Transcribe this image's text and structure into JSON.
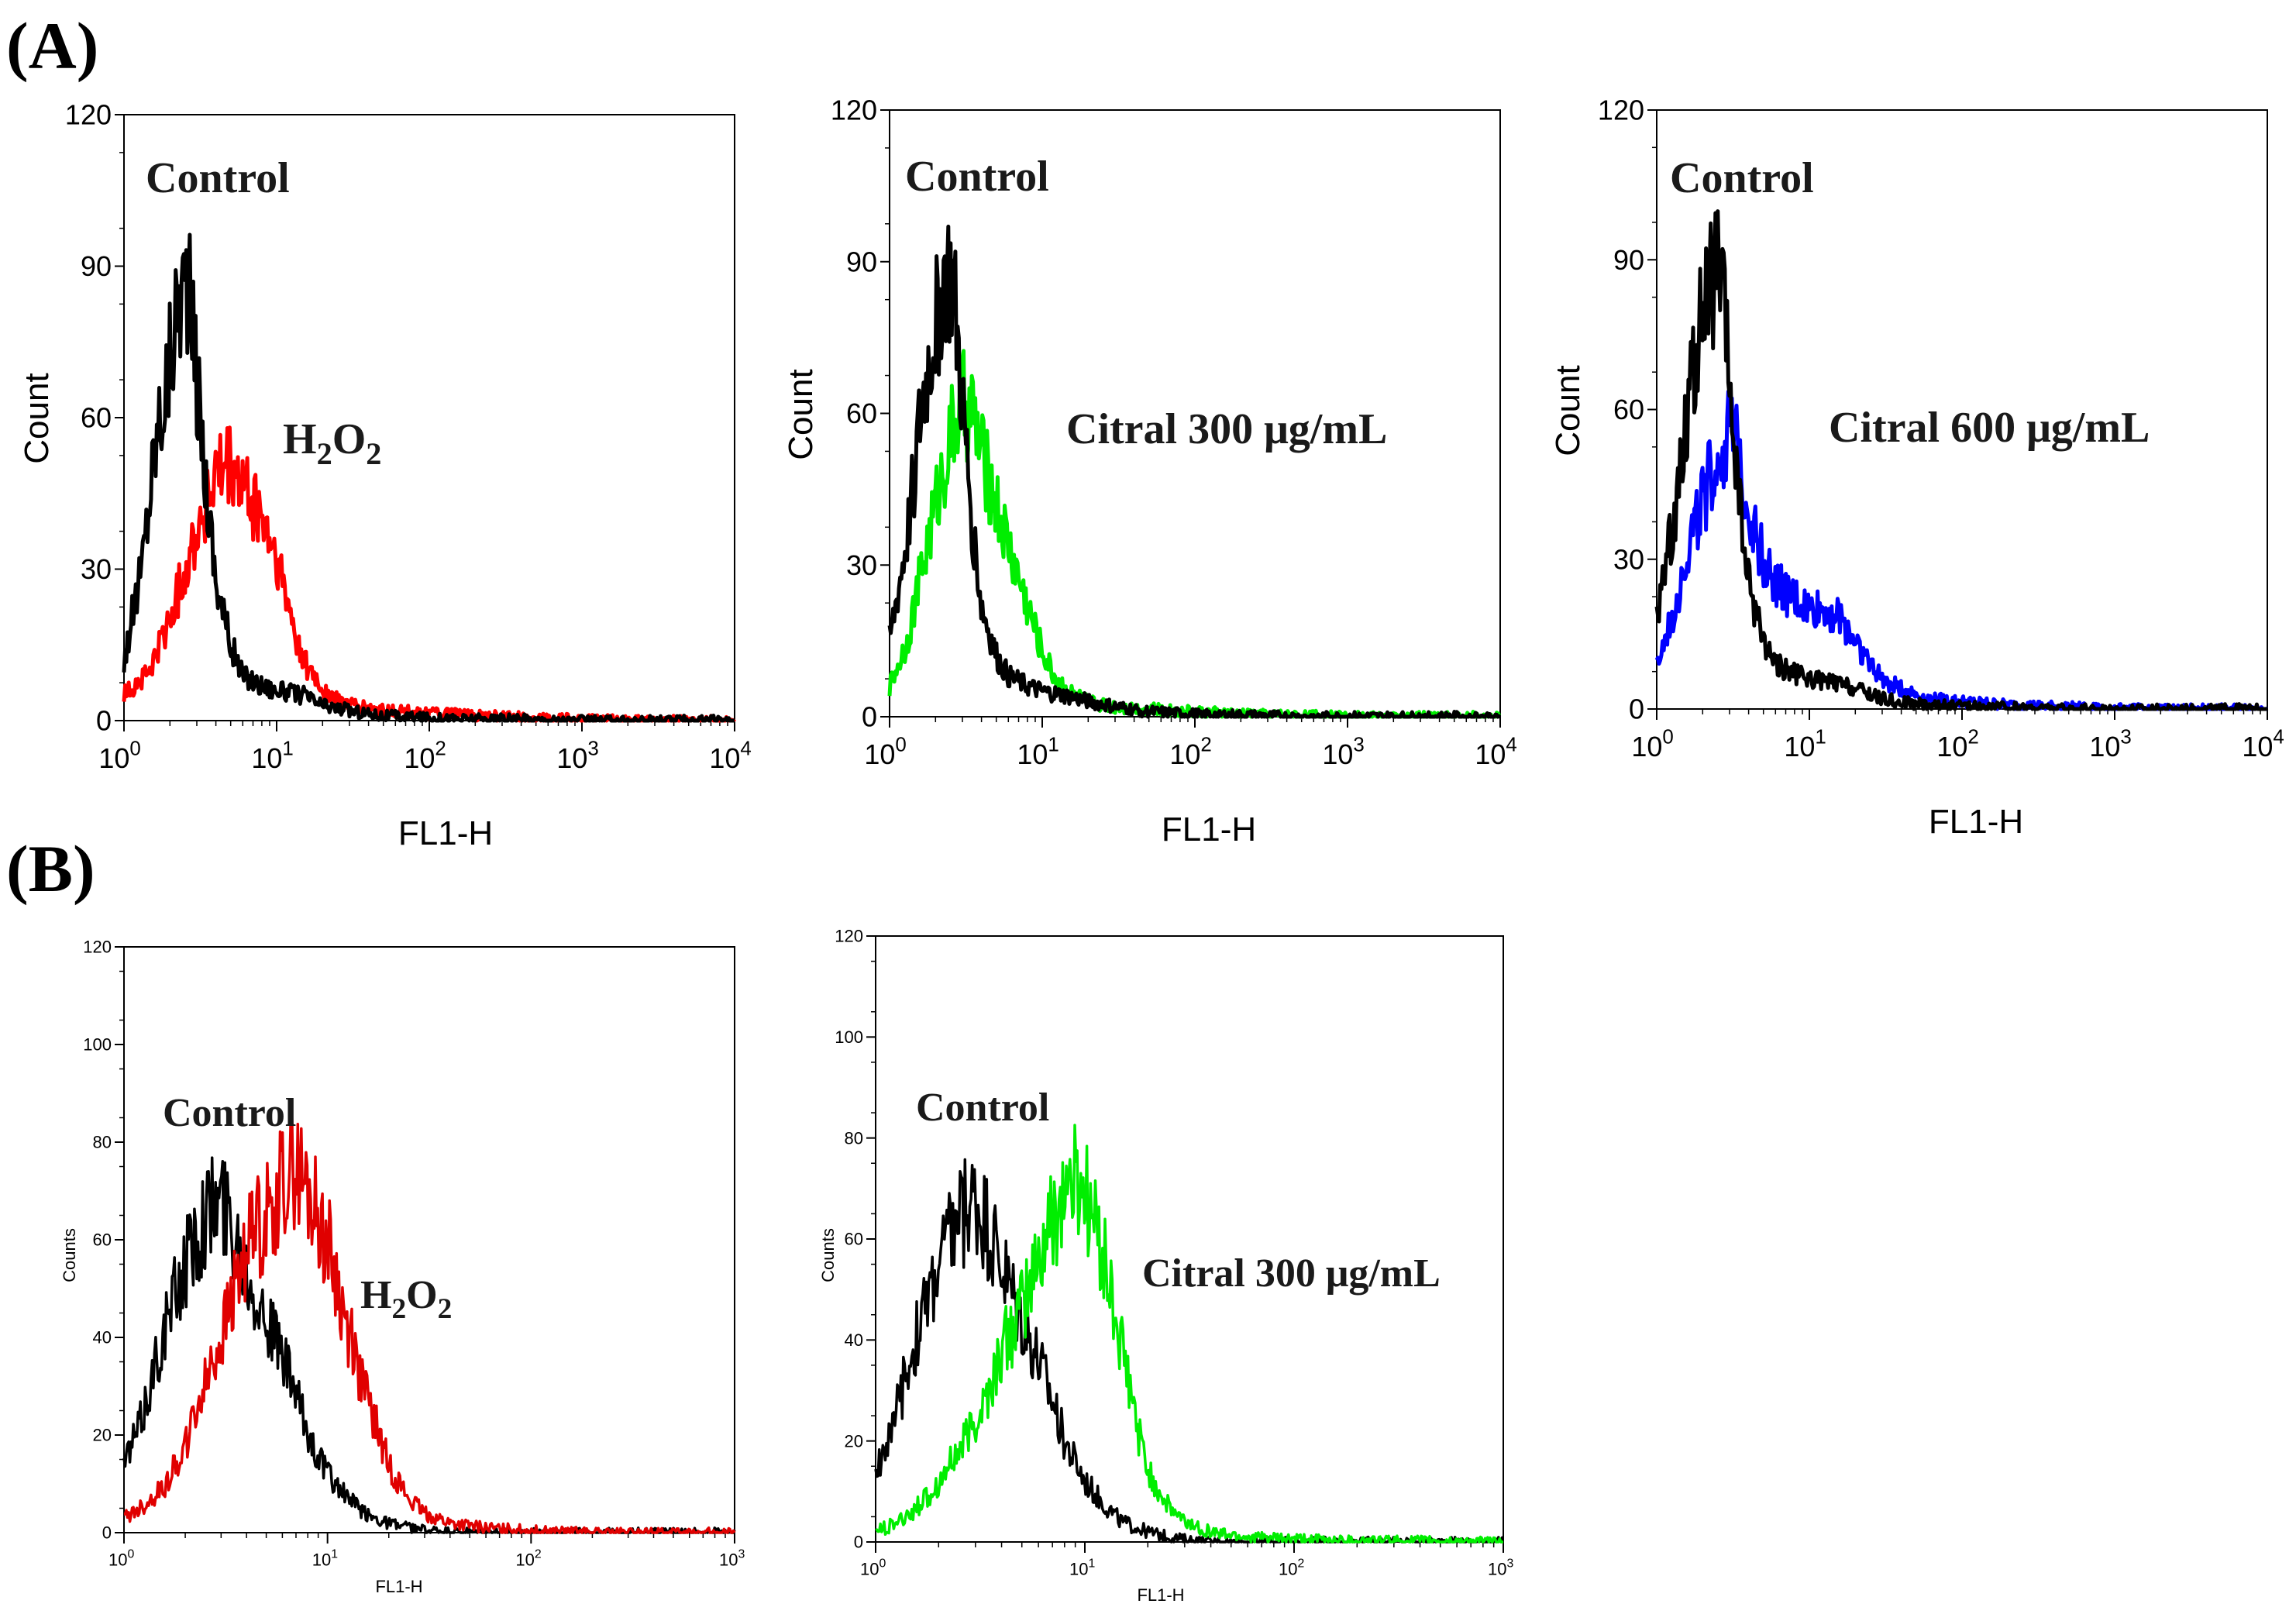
{
  "figure": {
    "panel_labels": [
      "(A)",
      "(B)"
    ]
  },
  "colors": {
    "control": "#000000",
    "h2o2": "#ff0000",
    "h2o2_b": "#e00000",
    "citral300": "#00ee00",
    "citral600": "#0000ff"
  },
  "chart_data": [
    {
      "panel": "A",
      "type": "line",
      "title": "",
      "xlabel": "FL1-H",
      "ylabel": "Count",
      "xscale": "log",
      "xlim": [
        1,
        10000
      ],
      "ylim": [
        0,
        120
      ],
      "yticks": [
        "0",
        "30",
        "60",
        "90",
        "120"
      ],
      "xticks": [
        {
          "base": "10",
          "exp": "0"
        },
        {
          "base": "10",
          "exp": "1"
        },
        {
          "base": "10",
          "exp": "2"
        },
        {
          "base": "10",
          "exp": "3"
        },
        {
          "base": "10",
          "exp": "4"
        }
      ],
      "annotations": [
        {
          "text": "Control",
          "target": "control"
        },
        {
          "text": "H",
          "sub": "2",
          "text2": "O",
          "sub2": "2",
          "target": "treatment"
        }
      ],
      "series": [
        {
          "name": "Control",
          "color": "#000000",
          "x": [
            1,
            1.3,
            1.6,
            2.0,
            2.3,
            2.6,
            3.0,
            3.5,
            4.0,
            5.0,
            6.0,
            8.0,
            10,
            15,
            20,
            30,
            50,
            100,
            200,
            500,
            1000,
            2000,
            10000
          ],
          "values": [
            12,
            30,
            55,
            72,
            85,
            88,
            68,
            45,
            28,
            15,
            9,
            7,
            6,
            5,
            3,
            2,
            1,
            0.5,
            0.3,
            0.2,
            0,
            0,
            0
          ]
        },
        {
          "name": "H2O2",
          "color": "#ff0000",
          "x": [
            1,
            1.5,
            2.0,
            2.5,
            3.0,
            4.0,
            5.0,
            6.0,
            8.0,
            10,
            12,
            15,
            20,
            25,
            30,
            50,
            100,
            200,
            500,
            1000,
            2000,
            10000
          ],
          "values": [
            5,
            10,
            20,
            30,
            38,
            48,
            50,
            46,
            40,
            32,
            22,
            12,
            6,
            4,
            3,
            2,
            1.5,
            1,
            0.5,
            0.3,
            0,
            0
          ]
        }
      ]
    },
    {
      "panel": "A",
      "type": "line",
      "title": "",
      "xlabel": "FL1-H",
      "ylabel": "Count",
      "xscale": "log",
      "xlim": [
        1,
        10000
      ],
      "ylim": [
        0,
        120
      ],
      "yticks": [
        "0",
        "30",
        "60",
        "90",
        "120"
      ],
      "xticks": [
        {
          "base": "10",
          "exp": "0"
        },
        {
          "base": "10",
          "exp": "1"
        },
        {
          "base": "10",
          "exp": "2"
        },
        {
          "base": "10",
          "exp": "3"
        },
        {
          "base": "10",
          "exp": "4"
        }
      ],
      "annotations": [
        {
          "text": "Control",
          "target": "control"
        },
        {
          "text": "Citral 300 μg/mL",
          "target": "treatment"
        }
      ],
      "series": [
        {
          "name": "Control",
          "color": "#000000",
          "x": [
            1,
            1.3,
            1.6,
            2.0,
            2.3,
            2.6,
            3.0,
            3.5,
            4.0,
            5.0,
            6.0,
            8.0,
            10,
            15,
            20,
            30,
            50,
            100,
            200,
            500,
            1000,
            10000
          ],
          "values": [
            15,
            35,
            60,
            78,
            88,
            86,
            62,
            38,
            22,
            12,
            8,
            6,
            5,
            4,
            3,
            2,
            1,
            0.5,
            0.3,
            0,
            0,
            0
          ]
        },
        {
          "name": "Citral 300 μg/mL",
          "color": "#00ee00",
          "x": [
            1,
            1.3,
            1.6,
            2.0,
            2.5,
            3.0,
            3.5,
            4.0,
            5.0,
            6.0,
            8.0,
            10,
            12,
            15,
            20,
            30,
            50,
            100,
            200,
            500,
            1000,
            10000
          ],
          "values": [
            6,
            15,
            28,
            42,
            55,
            62,
            60,
            52,
            42,
            34,
            22,
            13,
            8,
            5,
            3,
            2,
            1.5,
            1,
            0.5,
            0.3,
            0,
            0
          ]
        }
      ]
    },
    {
      "panel": "A",
      "type": "line",
      "title": "",
      "xlabel": "FL1-H",
      "ylabel": "Count",
      "xscale": "log",
      "xlim": [
        1,
        10000
      ],
      "ylim": [
        0,
        120
      ],
      "yticks": [
        "0",
        "30",
        "60",
        "90",
        "120"
      ],
      "xticks": [
        {
          "base": "10",
          "exp": "0"
        },
        {
          "base": "10",
          "exp": "1"
        },
        {
          "base": "10",
          "exp": "2"
        },
        {
          "base": "10",
          "exp": "3"
        },
        {
          "base": "10",
          "exp": "4"
        }
      ],
      "annotations": [
        {
          "text": "Control",
          "target": "control"
        },
        {
          "text": "Citral 600 μg/mL",
          "target": "treatment"
        }
      ],
      "series": [
        {
          "name": "Control",
          "color": "#000000",
          "x": [
            1,
            1.3,
            1.6,
            2.0,
            2.3,
            2.6,
            3.0,
            3.5,
            4.0,
            5.0,
            6.0,
            8.0,
            10,
            15,
            20,
            30,
            50,
            100,
            200,
            500,
            1000,
            10000
          ],
          "values": [
            18,
            38,
            62,
            78,
            85,
            86,
            65,
            40,
            25,
            14,
            9,
            7,
            6,
            5,
            4,
            2,
            1,
            0.5,
            0.3,
            0,
            0,
            0
          ]
        },
        {
          "name": "Citral 600 μg/mL",
          "color": "#0000ff",
          "x": [
            1,
            1.3,
            1.6,
            2.0,
            2.5,
            3.0,
            3.5,
            4.0,
            5.0,
            6.0,
            8.0,
            10,
            13,
            16,
            20,
            25,
            30,
            40,
            60,
            100,
            200,
            500,
            1000,
            10000
          ],
          "values": [
            8,
            20,
            32,
            42,
            50,
            55,
            50,
            40,
            30,
            25,
            22,
            20,
            20,
            18,
            14,
            9,
            6,
            4,
            2,
            1.5,
            0.8,
            0.4,
            0,
            0
          ]
        }
      ]
    },
    {
      "panel": "B",
      "type": "line",
      "title": "",
      "xlabel": "FL1-H",
      "ylabel": "Counts",
      "xscale": "log",
      "xlim": [
        1,
        1000
      ],
      "ylim": [
        0,
        120
      ],
      "yticks": [
        "0",
        "20",
        "40",
        "60",
        "80",
        "100",
        "120"
      ],
      "xticks": [
        {
          "base": "10",
          "exp": "0"
        },
        {
          "base": "10",
          "exp": "1"
        },
        {
          "base": "10",
          "exp": "2"
        },
        {
          "base": "10",
          "exp": "3"
        }
      ],
      "annotations": [
        {
          "text": "Control",
          "target": "control"
        },
        {
          "text": "H",
          "sub": "2",
          "text2": "O",
          "sub2": "2",
          "target": "treatment"
        }
      ],
      "series": [
        {
          "name": "Control",
          "color": "#000000",
          "x": [
            1,
            1.2,
            1.5,
            2.0,
            2.5,
            3.0,
            3.5,
            4.0,
            5.0,
            6.0,
            7.0,
            8.0,
            10,
            12,
            15,
            20,
            25,
            30,
            40,
            60,
            100,
            1000
          ],
          "values": [
            14,
            22,
            38,
            55,
            65,
            68,
            62,
            55,
            44,
            36,
            28,
            20,
            12,
            8,
            4,
            2,
            1,
            0.5,
            0,
            0,
            0,
            0
          ]
        },
        {
          "name": "H2O2",
          "color": "#e00000",
          "x": [
            1,
            1.3,
            1.6,
            2.0,
            2.5,
            3.0,
            3.5,
            4.0,
            5.0,
            6.0,
            7.0,
            8.0,
            10,
            12,
            15,
            20,
            25,
            30,
            40,
            60,
            100,
            200,
            1000
          ],
          "values": [
            3,
            6,
            10,
            18,
            30,
            40,
            50,
            58,
            65,
            72,
            74,
            70,
            60,
            45,
            30,
            14,
            7,
            4,
            2,
            1,
            0.5,
            0,
            0
          ]
        }
      ]
    },
    {
      "panel": "B",
      "type": "line",
      "title": "",
      "xlabel": "FL1-H",
      "ylabel": "Counts",
      "xscale": "log",
      "xlim": [
        1,
        1000
      ],
      "ylim": [
        0,
        120
      ],
      "yticks": [
        "0",
        "20",
        "40",
        "60",
        "80",
        "100",
        "120"
      ],
      "xticks": [
        {
          "base": "10",
          "exp": "0"
        },
        {
          "base": "10",
          "exp": "1"
        },
        {
          "base": "10",
          "exp": "2"
        },
        {
          "base": "10",
          "exp": "3"
        }
      ],
      "annotations": [
        {
          "text": "Control",
          "target": "control"
        },
        {
          "text": "Citral 300 μg/mL",
          "target": "treatment"
        }
      ],
      "series": [
        {
          "name": "Control",
          "color": "#000000",
          "x": [
            1,
            1.2,
            1.5,
            2.0,
            2.5,
            3.0,
            3.5,
            4.0,
            5.0,
            6.0,
            7.0,
            8.0,
            10,
            12,
            15,
            20,
            25,
            30,
            40,
            60,
            100,
            1000
          ],
          "values": [
            14,
            22,
            38,
            55,
            65,
            68,
            62,
            55,
            44,
            36,
            28,
            20,
            12,
            8,
            4,
            2,
            1,
            0.5,
            0,
            0,
            0,
            0
          ]
        },
        {
          "name": "Citral 300 μg/mL",
          "color": "#00ee00",
          "x": [
            1,
            1.3,
            1.6,
            2.0,
            2.5,
            3.0,
            3.5,
            4.0,
            5.0,
            6.0,
            7.0,
            8.0,
            9.0,
            10,
            12,
            15,
            18,
            20,
            25,
            30,
            40,
            60,
            100,
            200,
            1000
          ],
          "values": [
            2,
            4,
            7,
            12,
            18,
            24,
            30,
            38,
            46,
            56,
            64,
            70,
            72,
            70,
            58,
            38,
            22,
            14,
            7,
            4,
            2,
            1,
            0.5,
            0.3,
            0
          ]
        }
      ]
    }
  ]
}
